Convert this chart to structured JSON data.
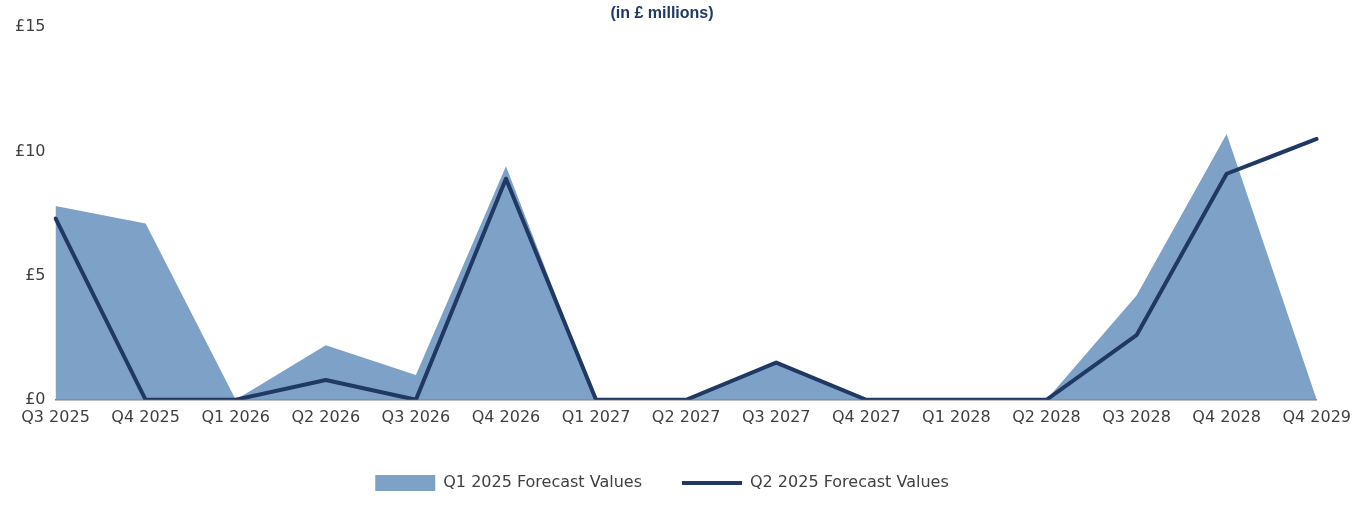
{
  "chart_data": {
    "type": "area",
    "subtitle": "(in £ millions)",
    "categories": [
      "Q3 2025",
      "Q4 2025",
      "Q1 2026",
      "Q2 2026",
      "Q3 2026",
      "Q4 2026",
      "Q1 2027",
      "Q2 2027",
      "Q3 2027",
      "Q4 2027",
      "Q1 2028",
      "Q2 2028",
      "Q3 2028",
      "Q4 2028",
      "Q4 2029"
    ],
    "series": [
      {
        "name": "Q1 2025 Forecast Values",
        "color": "#7ea1c7",
        "values": [
          7.8,
          7.1,
          0,
          2.2,
          1.0,
          9.4,
          0,
          0,
          1.5,
          0,
          0,
          0,
          4.2,
          10.7,
          0
        ]
      },
      {
        "name": "Q2 2025 Forecast Values",
        "type": "line",
        "color": "#1f3864",
        "values": [
          7.3,
          0,
          0,
          0.8,
          0,
          8.9,
          0,
          0,
          1.5,
          0,
          0,
          0,
          2.6,
          9.1,
          10.5
        ]
      }
    ],
    "ylim": [
      0,
      15
    ],
    "yticks": [
      {
        "value": 0,
        "label": "£0"
      },
      {
        "value": 5,
        "label": "£5"
      },
      {
        "value": 10,
        "label": "£10"
      },
      {
        "value": 15,
        "label": "£15"
      }
    ],
    "grid": false,
    "legend": "bottom",
    "marker": "none"
  }
}
